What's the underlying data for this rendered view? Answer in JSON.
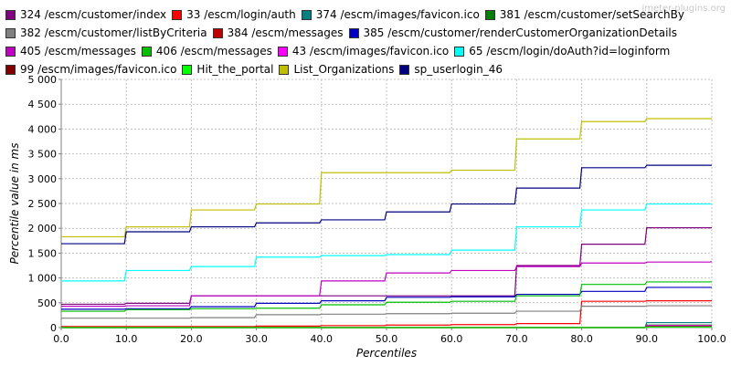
{
  "watermark": "jmeter-plugins.org",
  "chart_data": {
    "type": "line",
    "title": "",
    "xlabel": "Percentiles",
    "ylabel": "Percentile value in ms",
    "xlim": [
      0,
      100
    ],
    "ylim": [
      0,
      5000
    ],
    "x_ticks": [
      "0.0",
      "10.0",
      "20.0",
      "30.0",
      "40.0",
      "50.0",
      "60.0",
      "70.0",
      "80.0",
      "90.0",
      "100.0"
    ],
    "y_ticks": [
      "0",
      "500",
      "1 000",
      "1 500",
      "2 000",
      "2 500",
      "3 000",
      "3 500",
      "4 000",
      "4 500",
      "5 000"
    ],
    "grid": true,
    "legend_position": "top",
    "legend_rows": [
      [
        0,
        1,
        2,
        3
      ],
      [
        4,
        5,
        6
      ],
      [
        7,
        8,
        9,
        10
      ],
      [
        11,
        12,
        13,
        14
      ]
    ],
    "series": [
      {
        "name": "324 /escm/customer/index",
        "color": "#800080",
        "x": [
          0,
          10,
          20,
          30,
          40,
          50,
          60,
          70,
          78,
          80,
          88,
          90,
          100
        ],
        "y": [
          470,
          490,
          640,
          640,
          640,
          640,
          640,
          1250,
          1250,
          1680,
          1680,
          2010,
          2010
        ]
      },
      {
        "name": "33 /escm/login/auth",
        "color": "#ff0000",
        "x": [
          0,
          10,
          20,
          30,
          40,
          50,
          60,
          70,
          78,
          80,
          90,
          100
        ],
        "y": [
          20,
          20,
          20,
          30,
          40,
          50,
          60,
          80,
          80,
          530,
          540,
          540
        ]
      },
      {
        "name": "374 /escm/images/favicon.ico",
        "color": "#008080",
        "x": [
          0,
          80,
          88,
          90,
          100
        ],
        "y": [
          0,
          0,
          0,
          100,
          100
        ]
      },
      {
        "name": "381 /escm/customer/setSearchBy",
        "color": "#008000",
        "x": [
          0,
          80,
          88,
          90,
          100
        ],
        "y": [
          0,
          0,
          0,
          50,
          50
        ]
      },
      {
        "name": "382 /escm/customer/listByCriteria",
        "color": "#808080",
        "x": [
          0,
          10,
          20,
          30,
          40,
          50,
          60,
          70,
          78,
          80,
          90,
          100
        ],
        "y": [
          190,
          190,
          200,
          260,
          270,
          280,
          290,
          330,
          330,
          430,
          440,
          440
        ]
      },
      {
        "name": "384 /escm/messages",
        "color": "#c00000",
        "x": [
          0,
          80,
          90,
          100
        ],
        "y": [
          0,
          0,
          10,
          10
        ]
      },
      {
        "name": "385 /escm/customer/renderCustomerOrganizationDetails",
        "color": "#0000c0",
        "x": [
          0,
          10,
          20,
          30,
          40,
          50,
          60,
          70,
          78,
          80,
          88,
          90,
          100
        ],
        "y": [
          370,
          380,
          420,
          490,
          540,
          610,
          620,
          670,
          670,
          730,
          730,
          810,
          810
        ]
      },
      {
        "name": "405 /escm/messages",
        "color": "#c000c0",
        "x": [
          0,
          10,
          20,
          30,
          40,
          50,
          60,
          70,
          80,
          90,
          100
        ],
        "y": [
          430,
          440,
          640,
          640,
          940,
          1100,
          1150,
          1230,
          1300,
          1320,
          1330
        ]
      },
      {
        "name": "406 /escm/messages",
        "color": "#00c000",
        "x": [
          0,
          10,
          20,
          30,
          40,
          50,
          60,
          70,
          78,
          80,
          88,
          90,
          100
        ],
        "y": [
          330,
          360,
          380,
          390,
          460,
          510,
          530,
          640,
          640,
          870,
          870,
          920,
          920
        ]
      },
      {
        "name": "43 /escm/images/favicon.ico",
        "color": "#ff00ff",
        "x": [
          0,
          80,
          88,
          90,
          100
        ],
        "y": [
          0,
          0,
          0,
          40,
          40
        ]
      },
      {
        "name": "65 /escm/login/doAuth?id=loginform",
        "color": "#00ffff",
        "x": [
          0,
          10,
          20,
          30,
          40,
          50,
          60,
          70,
          78,
          80,
          88,
          90,
          100
        ],
        "y": [
          940,
          1150,
          1230,
          1420,
          1450,
          1470,
          1560,
          2030,
          2030,
          2370,
          2370,
          2490,
          2490
        ]
      },
      {
        "name": "99 /escm/images/favicon.ico",
        "color": "#800000",
        "x": [
          0,
          80,
          88,
          90,
          100
        ],
        "y": [
          0,
          0,
          0,
          20,
          20
        ]
      },
      {
        "name": "Hit_the_portal",
        "color": "#00ff00",
        "x": [
          0,
          80,
          88,
          90,
          100
        ],
        "y": [
          0,
          0,
          0,
          10,
          10
        ]
      },
      {
        "name": "List_Organizations",
        "color": "#c0c000",
        "x": [
          0,
          10,
          20,
          30,
          40,
          50,
          60,
          70,
          78,
          80,
          88,
          90,
          100
        ],
        "y": [
          1830,
          2030,
          2370,
          2490,
          3120,
          3120,
          3170,
          3800,
          3800,
          4150,
          4150,
          4210,
          4210
        ]
      },
      {
        "name": "sp_userlogin_46",
        "color": "#000080",
        "x": [
          0,
          10,
          20,
          30,
          40,
          50,
          60,
          70,
          78,
          80,
          88,
          90,
          100
        ],
        "y": [
          1690,
          1930,
          2030,
          2110,
          2170,
          2330,
          2490,
          2810,
          2810,
          3220,
          3220,
          3270,
          3270
        ]
      }
    ]
  }
}
